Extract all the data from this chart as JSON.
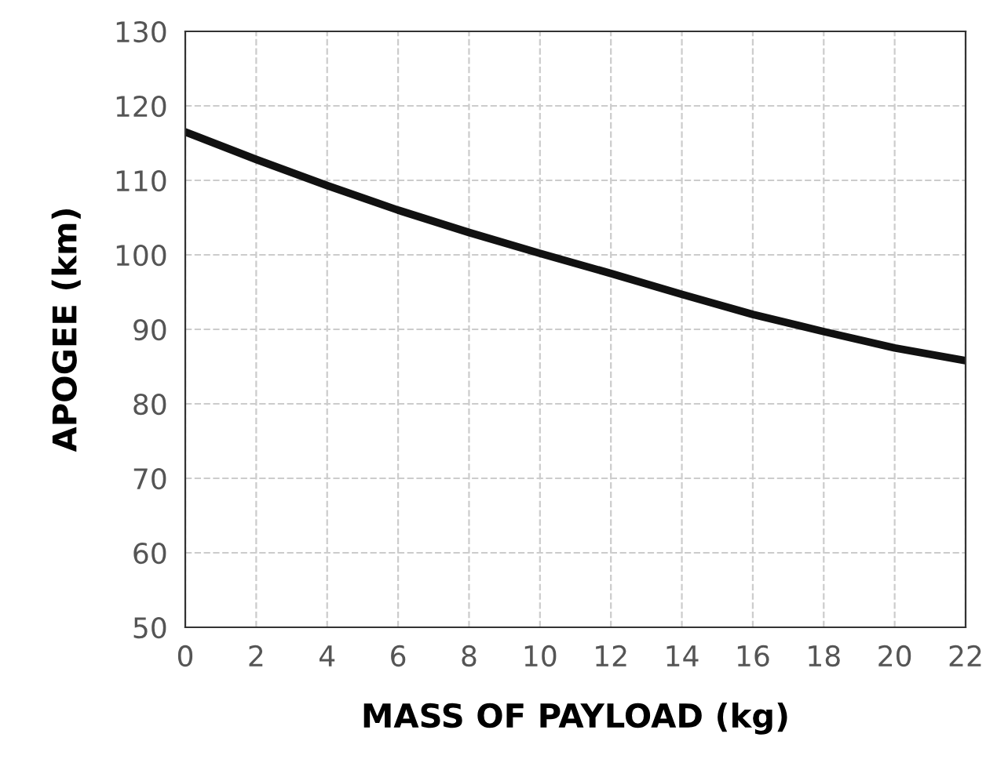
{
  "chart_data": {
    "type": "line",
    "xlabel": "MASS OF PAYLOAD (kg)",
    "ylabel": "APOGEE (km)",
    "x": [
      0,
      2,
      4,
      6,
      8,
      10,
      12,
      14,
      16,
      18,
      20,
      22
    ],
    "series": [
      {
        "color": "#111111",
        "values": [
          116.5,
          112.8,
          109.3,
          106,
          103,
          100.2,
          97.5,
          94.7,
          92,
          89.7,
          87.5,
          85.8
        ]
      }
    ],
    "xlim": [
      0,
      22
    ],
    "xticks": [
      0,
      2,
      4,
      6,
      8,
      10,
      12,
      14,
      16,
      18,
      20,
      22
    ],
    "ylim": [
      50,
      130
    ],
    "yticks": [
      50,
      60,
      70,
      80,
      90,
      100,
      110,
      120,
      130
    ],
    "grid": true,
    "line_style": "solid",
    "marker": "none"
  }
}
